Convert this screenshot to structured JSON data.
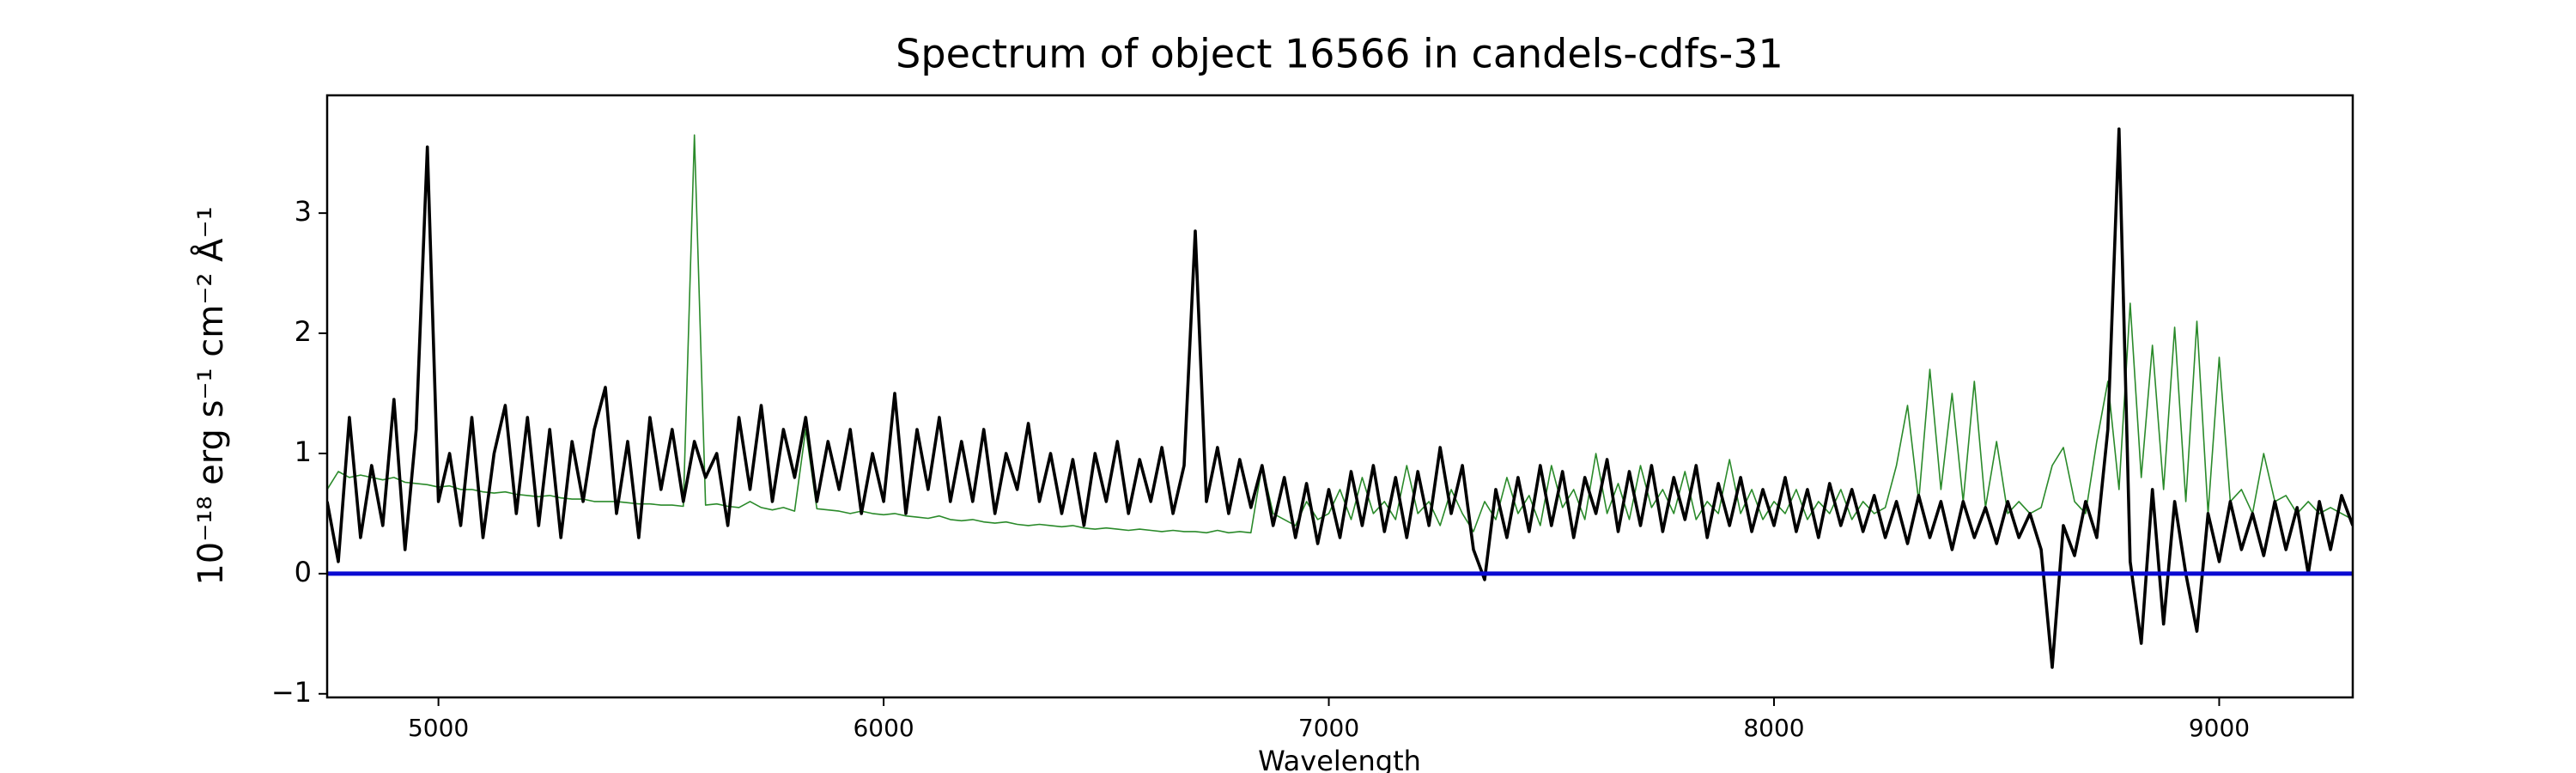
{
  "chart_data": {
    "type": "line",
    "title": "Spectrum of object 16566 in candels-cdfs-31",
    "xlabel": "Wavelength",
    "ylabel": "10⁻¹⁸ erg s⁻¹ cm⁻² Å⁻¹",
    "xlim": [
      4750,
      9300
    ],
    "ylim": [
      -1.03,
      3.98
    ],
    "xticks": [
      5000,
      6000,
      7000,
      8000,
      9000
    ],
    "yticks": [
      {
        "value": -1,
        "label": "−1"
      },
      0,
      1,
      2,
      3
    ],
    "x": [
      4750,
      4775,
      4800,
      4825,
      4850,
      4875,
      4900,
      4925,
      4950,
      4975,
      5000,
      5025,
      5050,
      5075,
      5100,
      5125,
      5150,
      5175,
      5200,
      5225,
      5250,
      5275,
      5300,
      5325,
      5350,
      5375,
      5400,
      5425,
      5450,
      5475,
      5500,
      5525,
      5550,
      5575,
      5600,
      5625,
      5650,
      5675,
      5700,
      5725,
      5750,
      5775,
      5800,
      5825,
      5850,
      5875,
      5900,
      5925,
      5950,
      5975,
      6000,
      6025,
      6050,
      6075,
      6100,
      6125,
      6150,
      6175,
      6200,
      6225,
      6250,
      6275,
      6300,
      6325,
      6350,
      6375,
      6400,
      6425,
      6450,
      6475,
      6500,
      6525,
      6550,
      6575,
      6600,
      6625,
      6650,
      6675,
      6700,
      6725,
      6750,
      6775,
      6800,
      6825,
      6850,
      6875,
      6900,
      6925,
      6950,
      6975,
      7000,
      7025,
      7050,
      7075,
      7100,
      7125,
      7150,
      7175,
      7200,
      7225,
      7250,
      7275,
      7300,
      7325,
      7350,
      7375,
      7400,
      7425,
      7450,
      7475,
      7500,
      7525,
      7550,
      7575,
      7600,
      7625,
      7650,
      7675,
      7700,
      7725,
      7750,
      7775,
      7800,
      7825,
      7850,
      7875,
      7900,
      7925,
      7950,
      7975,
      8000,
      8025,
      8050,
      8075,
      8100,
      8125,
      8150,
      8175,
      8200,
      8225,
      8250,
      8275,
      8300,
      8325,
      8350,
      8375,
      8400,
      8425,
      8450,
      8475,
      8500,
      8525,
      8550,
      8575,
      8600,
      8625,
      8650,
      8675,
      8700,
      8725,
      8750,
      8775,
      8800,
      8825,
      8850,
      8875,
      8900,
      8925,
      8950,
      8975,
      9000,
      9025,
      9050,
      9075,
      9100,
      9125,
      9150,
      9175,
      9200,
      9225,
      9250,
      9275,
      9300
    ],
    "series": [
      {
        "color": "#2a8a2a",
        "width": 1.6,
        "values": [
          0.7,
          0.85,
          0.8,
          0.82,
          0.8,
          0.78,
          0.8,
          0.76,
          0.75,
          0.74,
          0.72,
          0.73,
          0.7,
          0.7,
          0.68,
          0.67,
          0.68,
          0.66,
          0.65,
          0.64,
          0.65,
          0.63,
          0.62,
          0.62,
          0.6,
          0.6,
          0.6,
          0.59,
          0.58,
          0.58,
          0.57,
          0.57,
          0.56,
          3.65,
          0.57,
          0.58,
          0.56,
          0.55,
          0.6,
          0.55,
          0.53,
          0.55,
          0.52,
          1.2,
          0.54,
          0.53,
          0.52,
          0.5,
          0.52,
          0.5,
          0.49,
          0.5,
          0.48,
          0.47,
          0.46,
          0.48,
          0.45,
          0.44,
          0.45,
          0.43,
          0.42,
          0.43,
          0.41,
          0.4,
          0.41,
          0.4,
          0.39,
          0.4,
          0.38,
          0.37,
          0.38,
          0.37,
          0.36,
          0.37,
          0.36,
          0.35,
          0.36,
          0.35,
          0.35,
          0.34,
          0.36,
          0.34,
          0.35,
          0.34,
          0.9,
          0.5,
          0.45,
          0.4,
          0.6,
          0.45,
          0.5,
          0.7,
          0.45,
          0.8,
          0.5,
          0.6,
          0.45,
          0.9,
          0.5,
          0.6,
          0.4,
          0.7,
          0.5,
          0.35,
          0.6,
          0.45,
          0.8,
          0.5,
          0.65,
          0.4,
          0.9,
          0.55,
          0.7,
          0.45,
          1.0,
          0.5,
          0.75,
          0.45,
          0.9,
          0.55,
          0.7,
          0.5,
          0.85,
          0.45,
          0.6,
          0.5,
          0.95,
          0.5,
          0.7,
          0.45,
          0.6,
          0.5,
          0.7,
          0.45,
          0.6,
          0.5,
          0.7,
          0.45,
          0.6,
          0.5,
          0.55,
          0.9,
          1.4,
          0.6,
          1.7,
          0.7,
          1.5,
          0.6,
          1.6,
          0.55,
          1.1,
          0.5,
          0.6,
          0.5,
          0.55,
          0.9,
          1.05,
          0.6,
          0.5,
          1.1,
          1.6,
          0.7,
          2.25,
          0.8,
          1.9,
          0.7,
          2.05,
          0.6,
          2.1,
          0.5,
          1.8,
          0.6,
          0.7,
          0.5,
          1.0,
          0.6,
          0.65,
          0.5,
          0.6,
          0.5,
          0.55,
          0.5,
          0.45
        ]
      },
      {
        "color": "#000000",
        "width": 3.6,
        "values": [
          0.6,
          0.1,
          1.3,
          0.3,
          0.9,
          0.4,
          1.45,
          0.2,
          1.2,
          3.55,
          0.6,
          1.0,
          0.4,
          1.3,
          0.3,
          1.0,
          1.4,
          0.5,
          1.3,
          0.4,
          1.2,
          0.3,
          1.1,
          0.6,
          1.2,
          1.55,
          0.5,
          1.1,
          0.3,
          1.3,
          0.7,
          1.2,
          0.6,
          1.1,
          0.8,
          1.0,
          0.4,
          1.3,
          0.7,
          1.4,
          0.6,
          1.2,
          0.8,
          1.3,
          0.6,
          1.1,
          0.7,
          1.2,
          0.5,
          1.0,
          0.6,
          1.5,
          0.5,
          1.2,
          0.7,
          1.3,
          0.6,
          1.1,
          0.6,
          1.2,
          0.5,
          1.0,
          0.7,
          1.25,
          0.6,
          1.0,
          0.5,
          0.95,
          0.4,
          1.0,
          0.6,
          1.1,
          0.5,
          0.95,
          0.6,
          1.05,
          0.5,
          0.9,
          2.85,
          0.6,
          1.05,
          0.5,
          0.95,
          0.55,
          0.9,
          0.4,
          0.8,
          0.3,
          0.75,
          0.25,
          0.7,
          0.3,
          0.85,
          0.4,
          0.9,
          0.35,
          0.8,
          0.3,
          0.85,
          0.4,
          1.05,
          0.5,
          0.9,
          0.2,
          -0.05,
          0.7,
          0.3,
          0.8,
          0.35,
          0.9,
          0.4,
          0.85,
          0.3,
          0.8,
          0.5,
          0.95,
          0.35,
          0.85,
          0.4,
          0.9,
          0.35,
          0.8,
          0.45,
          0.9,
          0.3,
          0.75,
          0.4,
          0.8,
          0.35,
          0.7,
          0.4,
          0.8,
          0.35,
          0.7,
          0.3,
          0.75,
          0.4,
          0.7,
          0.35,
          0.65,
          0.3,
          0.6,
          0.25,
          0.65,
          0.3,
          0.6,
          0.2,
          0.6,
          0.3,
          0.55,
          0.25,
          0.6,
          0.3,
          0.5,
          0.2,
          -0.78,
          0.4,
          0.15,
          0.6,
          0.3,
          1.2,
          3.7,
          0.1,
          -0.58,
          0.7,
          -0.42,
          0.6,
          0.0,
          -0.48,
          0.5,
          0.1,
          0.6,
          0.2,
          0.5,
          0.15,
          0.6,
          0.2,
          0.55,
          0.0,
          0.6,
          0.2,
          0.65,
          0.4
        ]
      },
      {
        "color": "#0a0ad2",
        "width": 5,
        "x": [
          4750,
          9300
        ],
        "values": [
          0,
          0
        ]
      }
    ]
  }
}
